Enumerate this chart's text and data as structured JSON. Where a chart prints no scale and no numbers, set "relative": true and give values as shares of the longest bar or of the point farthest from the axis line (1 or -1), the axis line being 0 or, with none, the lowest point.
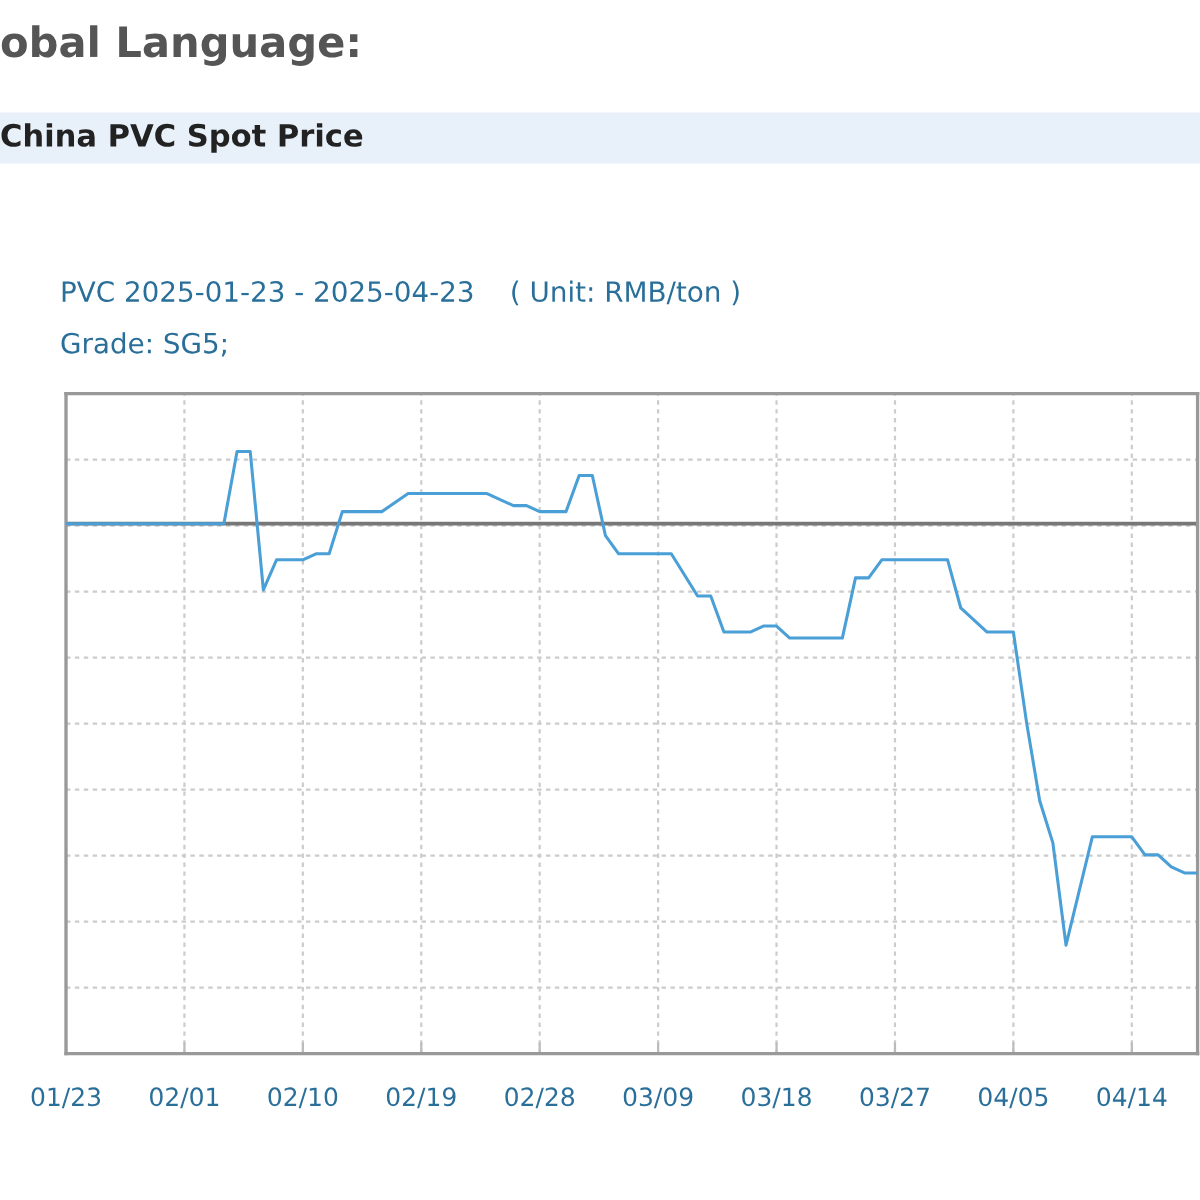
{
  "chart_data": {
    "type": "line",
    "title": "China PVC Spot Price",
    "subtitle": "PVC 2025-01-23 - 2025-04-23    ( Unit: RMB/ton )",
    "annotations": [
      "obal Language:",
      "Grade: SG5;"
    ],
    "relative": true,
    "x": [
      "2025-01-23",
      "2025-02-04",
      "2025-02-05",
      "2025-02-06",
      "2025-02-07",
      "2025-02-08",
      "2025-02-10",
      "2025-02-11",
      "2025-02-12",
      "2025-02-13",
      "2025-02-16",
      "2025-02-18",
      "2025-02-24",
      "2025-02-26",
      "2025-02-27",
      "2025-02-28",
      "2025-03-02",
      "2025-03-03",
      "2025-03-04",
      "2025-03-05",
      "2025-03-06",
      "2025-03-10",
      "2025-03-12",
      "2025-03-13",
      "2025-03-14",
      "2025-03-16",
      "2025-03-17",
      "2025-03-18",
      "2025-03-19",
      "2025-03-23",
      "2025-03-24",
      "2025-03-25",
      "2025-03-26",
      "2025-03-31",
      "2025-04-01",
      "2025-04-03",
      "2025-04-05",
      "2025-04-06",
      "2025-04-07",
      "2025-04-08",
      "2025-04-09",
      "2025-04-11",
      "2025-04-14",
      "2025-04-15",
      "2025-04-16",
      "2025-04-17",
      "2025-04-18",
      "2025-04-19"
    ],
    "series": [
      {
        "color": "#4a9fd6",
        "values": [
          0.88,
          0.88,
          1.0,
          1.0,
          0.77,
          0.82,
          0.82,
          0.83,
          0.83,
          0.9,
          0.9,
          0.93,
          0.93,
          0.91,
          0.91,
          0.9,
          0.9,
          0.96,
          0.96,
          0.86,
          0.83,
          0.83,
          0.76,
          0.76,
          0.7,
          0.7,
          0.71,
          0.71,
          0.69,
          0.69,
          0.79,
          0.79,
          0.82,
          0.82,
          0.74,
          0.7,
          0.7,
          0.55,
          0.42,
          0.35,
          0.18,
          0.36,
          0.36,
          0.33,
          0.33,
          0.31,
          0.3,
          0.3
        ]
      }
    ],
    "xlim": [
      "2025-01-23",
      "2025-04-19"
    ],
    "xticks": [
      {
        "value": "2025-01-23",
        "label": "01/23"
      },
      {
        "value": "2025-02-01",
        "label": "02/01"
      },
      {
        "value": "2025-02-10",
        "label": "02/10"
      },
      {
        "value": "2025-02-19",
        "label": "02/19"
      },
      {
        "value": "2025-02-28",
        "label": "02/28"
      },
      {
        "value": "2025-03-09",
        "label": "03/09"
      },
      {
        "value": "2025-03-18",
        "label": "03/18"
      },
      {
        "value": "2025-03-27",
        "label": "03/27"
      },
      {
        "value": "2025-04-05",
        "label": "04/05"
      },
      {
        "value": "2025-04-14",
        "label": "04/14"
      }
    ],
    "ref_lines": [
      {
        "axis": "y",
        "value": 0.88,
        "color": "#777777"
      }
    ],
    "grid": true
  }
}
